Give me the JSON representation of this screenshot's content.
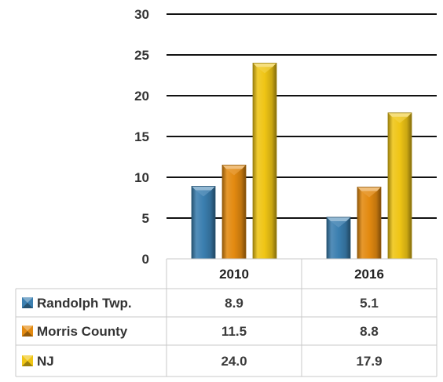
{
  "chart_data": {
    "type": "bar",
    "title": "",
    "xlabel": "",
    "ylabel": "",
    "categories": [
      "2010",
      "2016"
    ],
    "ylim": [
      0,
      30
    ],
    "yticks": [
      0,
      5,
      10,
      15,
      20,
      25,
      30
    ],
    "grid": true,
    "legend_placement": "data table, left column",
    "series": [
      {
        "name": "Randolph Twp.",
        "values": [
          8.9,
          5.1
        ],
        "color": "#3b7fb0"
      },
      {
        "name": "Morris County",
        "values": [
          11.5,
          8.8
        ],
        "color": "#e38a10"
      },
      {
        "name": "NJ",
        "values": [
          24.0,
          17.9
        ],
        "color": "#efc515"
      }
    ],
    "table": {
      "rows": [
        {
          "label": "Randolph Twp.",
          "cells": [
            "8.9",
            "5.1"
          ]
        },
        {
          "label": "Morris County",
          "cells": [
            "11.5",
            "8.8"
          ]
        },
        {
          "label": "NJ",
          "cells": [
            "24.0",
            "17.9"
          ]
        }
      ]
    }
  }
}
